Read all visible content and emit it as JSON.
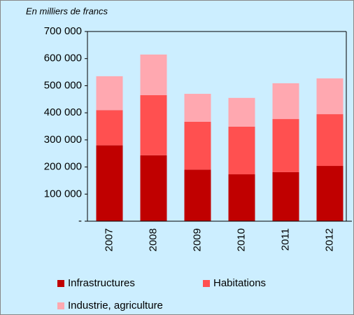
{
  "chart_data": {
    "type": "stacked-bar",
    "subtitle": "En milliers de francs",
    "categories": [
      "2007",
      "2008",
      "2009",
      "2010",
      "2011",
      "2012"
    ],
    "series": [
      {
        "name": "Infrastructures",
        "color": "#c00000",
        "values": [
          280000,
          243000,
          190000,
          173000,
          181000,
          204000
        ]
      },
      {
        "name": "Habitations",
        "color": "#ff5050",
        "values": [
          130000,
          222000,
          177000,
          176000,
          196000,
          191000
        ]
      },
      {
        "name": "Industrie, agriculture",
        "color": "#ffa8b0",
        "values": [
          125000,
          150000,
          103000,
          106000,
          132000,
          132000
        ]
      }
    ],
    "ylim": [
      0,
      700000
    ],
    "yticks": [
      {
        "value": 0,
        "label": "-"
      },
      {
        "value": 100000,
        "label": "100 000"
      },
      {
        "value": 200000,
        "label": "200 000"
      },
      {
        "value": 300000,
        "label": "300 000"
      },
      {
        "value": 400000,
        "label": "400 000"
      },
      {
        "value": 500000,
        "label": "500 000"
      },
      {
        "value": 600000,
        "label": "600 000"
      },
      {
        "value": 700000,
        "label": "700 000"
      }
    ],
    "grid": false
  }
}
